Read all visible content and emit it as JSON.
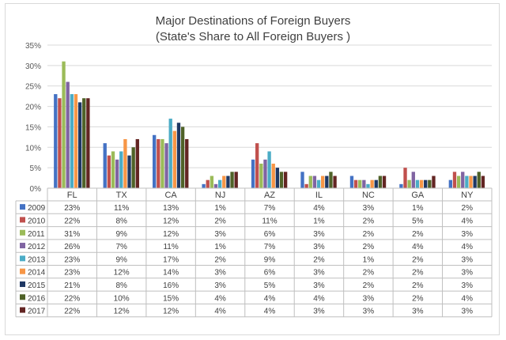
{
  "chart_data": {
    "type": "bar",
    "title": "Major Destinations of Foreign Buyers",
    "subtitle": "(State's Share to All Foreign Buyers )",
    "categories": [
      "FL",
      "TX",
      "CA",
      "NJ",
      "AZ",
      "IL",
      "NC",
      "GA",
      "NY"
    ],
    "ylim": [
      0,
      35
    ],
    "yticks": [
      "0%",
      "5%",
      "10%",
      "15%",
      "20%",
      "25%",
      "30%",
      "35%"
    ],
    "grid": true,
    "legend_placement": "data-table-left",
    "colors": [
      "#4472c4",
      "#c0504d",
      "#9bbb59",
      "#8064a2",
      "#4bacc6",
      "#f79646",
      "#1f3864",
      "#4f6228",
      "#632523"
    ],
    "series": [
      {
        "name": "2009",
        "values": [
          23,
          11,
          13,
          1,
          7,
          4,
          3,
          1,
          2
        ],
        "labels": [
          "23%",
          "11%",
          "13%",
          "1%",
          "7%",
          "4%",
          "3%",
          "1%",
          "2%"
        ]
      },
      {
        "name": "2010",
        "values": [
          22,
          8,
          12,
          2,
          11,
          1,
          2,
          5,
          4
        ],
        "labels": [
          "22%",
          "8%",
          "12%",
          "2%",
          "11%",
          "1%",
          "2%",
          "5%",
          "4%"
        ]
      },
      {
        "name": "2011",
        "values": [
          31,
          9,
          12,
          3,
          6,
          3,
          2,
          2,
          3
        ],
        "labels": [
          "31%",
          "9%",
          "12%",
          "3%",
          "6%",
          "3%",
          "2%",
          "2%",
          "3%"
        ]
      },
      {
        "name": "2012",
        "values": [
          26,
          7,
          11,
          1,
          7,
          3,
          2,
          4,
          4
        ],
        "labels": [
          "26%",
          "7%",
          "11%",
          "1%",
          "7%",
          "3%",
          "2%",
          "4%",
          "4%"
        ]
      },
      {
        "name": "2013",
        "values": [
          23,
          9,
          17,
          2,
          9,
          2,
          1,
          2,
          3
        ],
        "labels": [
          "23%",
          "9%",
          "17%",
          "2%",
          "9%",
          "2%",
          "1%",
          "2%",
          "3%"
        ]
      },
      {
        "name": "2014",
        "values": [
          23,
          12,
          14,
          3,
          6,
          3,
          2,
          2,
          3
        ],
        "labels": [
          "23%",
          "12%",
          "14%",
          "3%",
          "6%",
          "3%",
          "2%",
          "2%",
          "3%"
        ]
      },
      {
        "name": "2015",
        "values": [
          21,
          8,
          16,
          3,
          5,
          3,
          2,
          2,
          3
        ],
        "labels": [
          "21%",
          "8%",
          "16%",
          "3%",
          "5%",
          "3%",
          "2%",
          "2%",
          "3%"
        ]
      },
      {
        "name": "2016",
        "values": [
          22,
          10,
          15,
          4,
          4,
          4,
          3,
          2,
          4
        ],
        "labels": [
          "22%",
          "10%",
          "15%",
          "4%",
          "4%",
          "4%",
          "3%",
          "2%",
          "4%"
        ]
      },
      {
        "name": "2017",
        "values": [
          22,
          12,
          12,
          4,
          4,
          3,
          3,
          3,
          3
        ],
        "labels": [
          "22%",
          "12%",
          "12%",
          "4%",
          "4%",
          "3%",
          "3%",
          "3%",
          "3%"
        ]
      }
    ]
  }
}
